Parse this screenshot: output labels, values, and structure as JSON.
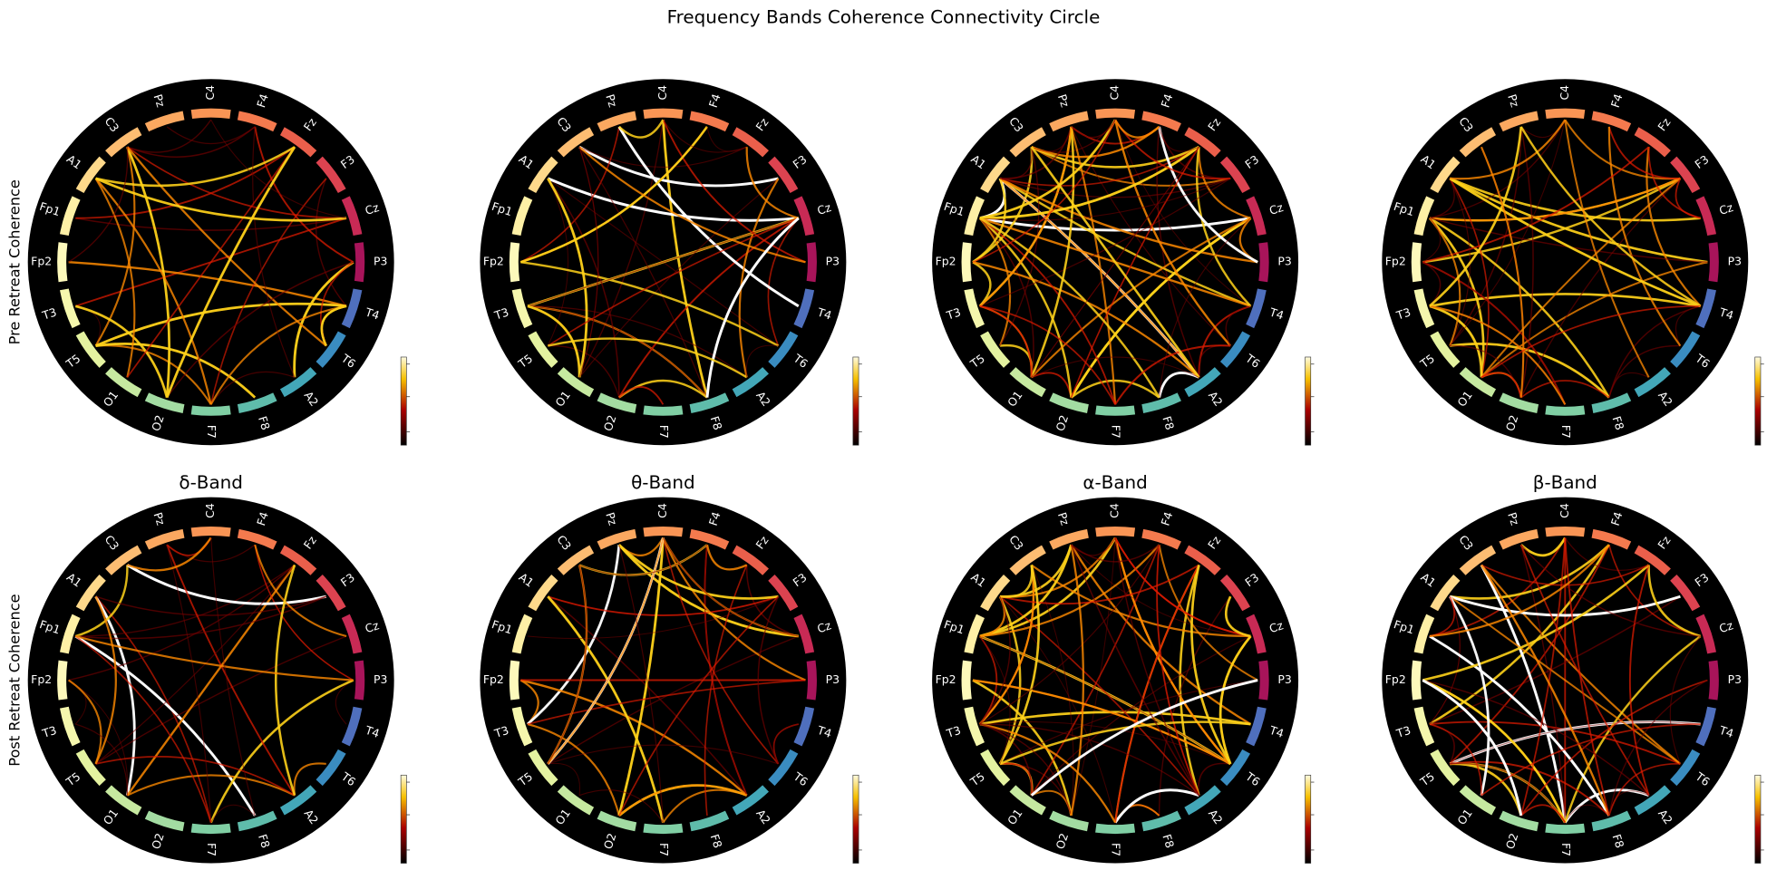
{
  "title": "Frequency Bands Coherence Connectivity Circle",
  "row_labels": [
    "Pre Retreat Coherence",
    "Post Retreat Coherence"
  ],
  "bands": [
    "δ-Band",
    "θ-Band",
    "α-Band",
    "β-Band"
  ],
  "nodes": [
    {
      "label": "C4",
      "color": "#f99555"
    },
    {
      "label": "F4",
      "color": "#f47a4e"
    },
    {
      "label": "Fz",
      "color": "#ea5f4b"
    },
    {
      "label": "F3",
      "color": "#dc4350"
    },
    {
      "label": "Cz",
      "color": "#c82a55"
    },
    {
      "label": "P3",
      "color": "#a8145a"
    },
    {
      "label": "T4",
      "color": "#4f6fbd"
    },
    {
      "label": "T6",
      "color": "#3a8cc0"
    },
    {
      "label": "A2",
      "color": "#43a7b8"
    },
    {
      "label": "F8",
      "color": "#5fbcab"
    },
    {
      "label": "F7",
      "color": "#80cfa4"
    },
    {
      "label": "O2",
      "color": "#a3dca2"
    },
    {
      "label": "O1",
      "color": "#c6e9a0"
    },
    {
      "label": "T5",
      "color": "#e4f2a0"
    },
    {
      "label": "T3",
      "color": "#f5f7ad"
    },
    {
      "label": "Fp2",
      "color": "#fdf9bb"
    },
    {
      "label": "Fp1",
      "color": "#fef0a6"
    },
    {
      "label": "A1",
      "color": "#fed98b"
    },
    {
      "label": "C3",
      "color": "#fdbd72"
    },
    {
      "label": "Pz",
      "color": "#fba860"
    }
  ]
}
